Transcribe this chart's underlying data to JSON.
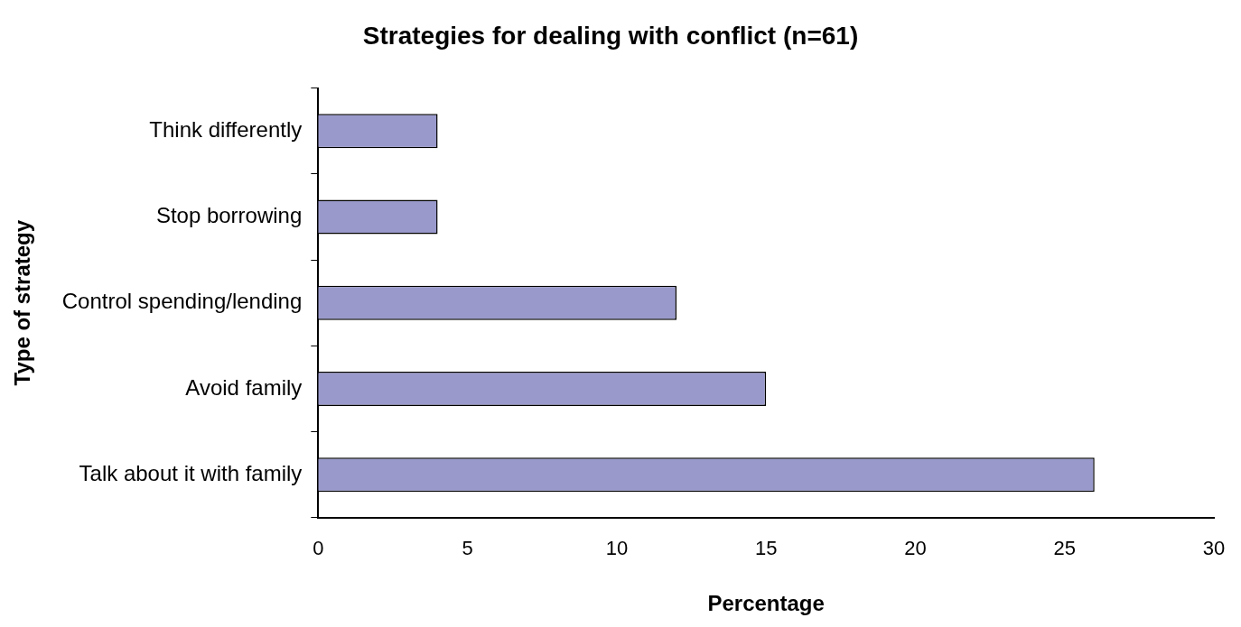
{
  "chart_data": {
    "type": "bar",
    "orientation": "horizontal",
    "title": "Strategies for dealing with conflict (n=61)",
    "xlabel": "Percentage",
    "ylabel": "Type of strategy",
    "categories": [
      "Think differently",
      "Stop borrowing",
      "Control spending/lending",
      "Avoid family",
      "Talk about it with family"
    ],
    "values": [
      4,
      4,
      12,
      15,
      26
    ],
    "color": "#9999cc",
    "xlim": [
      0,
      30
    ],
    "xticks": [
      0,
      5,
      10,
      15,
      20,
      25,
      30
    ],
    "grid": false,
    "legend": false
  }
}
